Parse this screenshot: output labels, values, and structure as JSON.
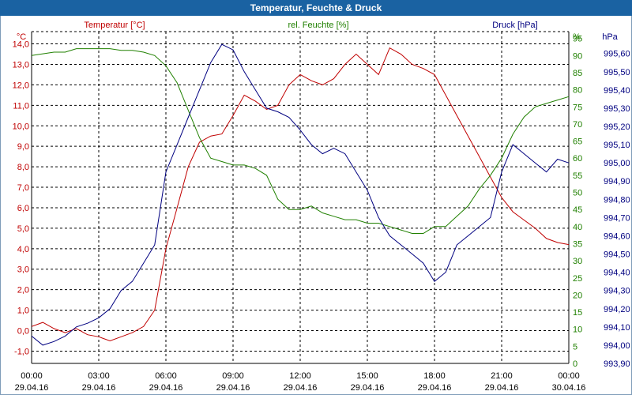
{
  "window": {
    "title": "Temperatur, Feuchte & Druck"
  },
  "chart_data": {
    "type": "line",
    "title": "Temperatur, Feuchte & Druck",
    "x_ticks": [
      {
        "time": "00:00",
        "date": "29.04.16"
      },
      {
        "time": "03:00",
        "date": "29.04.16"
      },
      {
        "time": "06:00",
        "date": "29.04.16"
      },
      {
        "time": "09:00",
        "date": "29.04.16"
      },
      {
        "time": "12:00",
        "date": "29.04.16"
      },
      {
        "time": "15:00",
        "date": "29.04.16"
      },
      {
        "time": "18:00",
        "date": "29.04.16"
      },
      {
        "time": "21:00",
        "date": "29.04.16"
      },
      {
        "time": "00:00",
        "date": "30.04.16"
      }
    ],
    "xlim": [
      0,
      24
    ],
    "grid": true,
    "axes": {
      "temperature": {
        "label": "Temperatur [°C]",
        "unit": "°C",
        "color": "#c00000",
        "ylim": [
          -1.6,
          14.6
        ],
        "ticks": [
          "-1,0",
          "0,0",
          "1,0",
          "2,0",
          "3,0",
          "4,0",
          "5,0",
          "6,0",
          "7,0",
          "8,0",
          "9,0",
          "10,0",
          "11,0",
          "12,0",
          "13,0",
          "14,0"
        ]
      },
      "humidity": {
        "label": "rel. Feuchte [%]",
        "unit": "%",
        "color": "#208000",
        "ylim": [
          0,
          97
        ],
        "ticks": [
          "0",
          "5",
          "10",
          "15",
          "20",
          "25",
          "30",
          "35",
          "40",
          "45",
          "50",
          "55",
          "60",
          "65",
          "70",
          "75",
          "80",
          "85",
          "90",
          "95"
        ]
      },
      "pressure": {
        "label": "Druck [hPa]",
        "unit": "hPa",
        "color": "#000080",
        "ylim": [
          993.9,
          995.72
        ],
        "ticks": [
          "993,90",
          "994,00",
          "994,10",
          "994,20",
          "994,30",
          "994,40",
          "994,50",
          "994,60",
          "994,70",
          "994,80",
          "994,90",
          "995,00",
          "995,10",
          "995,20",
          "995,30",
          "995,40",
          "995,50",
          "995,60"
        ]
      }
    },
    "series": [
      {
        "name": "Temperatur [°C]",
        "axis": "temperature",
        "color": "#c00000",
        "x": [
          0,
          0.5,
          1,
          1.5,
          2,
          2.5,
          3,
          3.5,
          4,
          4.5,
          5,
          5.5,
          6,
          6.5,
          7,
          7.5,
          8,
          8.5,
          9,
          9.5,
          10,
          10.5,
          11,
          11.5,
          12,
          12.5,
          13,
          13.5,
          14,
          14.5,
          15,
          15.5,
          16,
          16.5,
          17,
          17.5,
          18,
          18.5,
          19,
          19.5,
          20,
          20.5,
          21,
          21.5,
          22,
          22.5,
          23,
          23.5,
          24
        ],
        "values": [
          0.2,
          0.4,
          0.1,
          -0.1,
          0.1,
          -0.2,
          -0.3,
          -0.5,
          -0.3,
          -0.1,
          0.2,
          1.0,
          4.0,
          6.0,
          8.0,
          9.2,
          9.5,
          9.6,
          10.5,
          11.5,
          11.2,
          10.8,
          11.0,
          12.0,
          12.5,
          12.2,
          12.0,
          12.3,
          13.0,
          13.5,
          13.0,
          12.5,
          13.8,
          13.5,
          13.0,
          12.8,
          12.5,
          11.5,
          10.5,
          9.5,
          8.5,
          7.5,
          6.5,
          5.8,
          5.4,
          5.0,
          4.5,
          4.3,
          4.2
        ]
      },
      {
        "name": "rel. Feuchte [%]",
        "axis": "humidity",
        "color": "#208000",
        "x": [
          0,
          0.5,
          1,
          1.5,
          2,
          2.5,
          3,
          3.5,
          4,
          4.5,
          5,
          5.5,
          6,
          6.5,
          7,
          7.5,
          8,
          8.5,
          9,
          9.5,
          10,
          10.5,
          11,
          11.5,
          12,
          12.5,
          13,
          13.5,
          14,
          14.5,
          15,
          15.5,
          16,
          16.5,
          17,
          17.5,
          18,
          18.5,
          19,
          19.5,
          20,
          20.5,
          21,
          21.5,
          22,
          22.5,
          23,
          23.5,
          24
        ],
        "values": [
          90,
          90.5,
          91,
          91,
          92,
          92,
          92,
          92,
          91.5,
          91.5,
          91,
          90,
          87,
          82,
          74,
          66,
          60,
          59,
          58,
          58,
          57,
          55,
          48,
          45,
          45,
          46,
          44,
          43,
          42,
          42,
          41,
          41,
          40,
          39,
          38,
          38,
          40,
          40,
          43,
          46,
          51,
          55,
          60,
          67,
          72,
          75,
          76,
          77,
          78
        ]
      },
      {
        "name": "Druck [hPa]",
        "axis": "pressure",
        "color": "#000080",
        "x": [
          0,
          0.5,
          1,
          1.5,
          2,
          2.5,
          3,
          3.5,
          4,
          4.5,
          5,
          5.5,
          6,
          6.5,
          7,
          7.5,
          8,
          8.5,
          9,
          9.5,
          10,
          10.5,
          11,
          11.5,
          12,
          12.5,
          13,
          13.5,
          14,
          14.5,
          15,
          15.5,
          16,
          16.5,
          17,
          17.5,
          18,
          18.5,
          19,
          19.5,
          20,
          20.5,
          21,
          21.5,
          22,
          22.5,
          23,
          23.5,
          24
        ],
        "values": [
          994.05,
          994.0,
          994.02,
          994.05,
          994.1,
          994.12,
          994.15,
          994.2,
          994.3,
          994.35,
          994.45,
          994.55,
          994.95,
          995.1,
          995.25,
          995.4,
          995.55,
          995.65,
          995.62,
          995.5,
          995.4,
          995.3,
          995.28,
          995.25,
          995.18,
          995.1,
          995.05,
          995.08,
          995.05,
          994.95,
          994.85,
          994.7,
          994.6,
          994.55,
          994.5,
          994.45,
          994.35,
          994.4,
          994.55,
          994.6,
          994.65,
          994.7,
          994.95,
          995.1,
          995.05,
          995.0,
          994.95,
          995.02,
          995.0
        ]
      }
    ]
  }
}
